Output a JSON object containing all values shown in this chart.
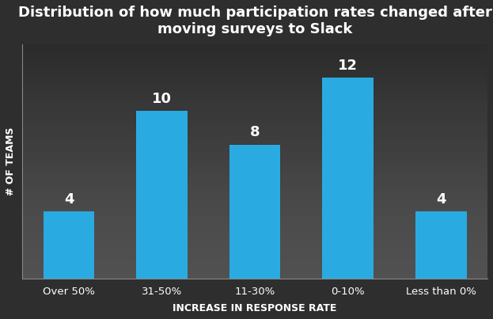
{
  "categories": [
    "Over 50%",
    "31-50%",
    "11-30%",
    "0-10%",
    "Less than 0%"
  ],
  "values": [
    4,
    10,
    8,
    12,
    4
  ],
  "bar_color": "#29ABE2",
  "background_color_top": "#2a2a2a",
  "background_color_bottom": "#3d3d3d",
  "title_line1": "Distribution of how much participation rates changed after",
  "title_line2": "moving surveys to Slack",
  "xlabel": "INCREASE IN RESPONSE RATE",
  "ylabel": "# OF TEAMS",
  "text_color": "#ffffff",
  "grid_color": "#555555",
  "ylim": [
    0,
    14
  ],
  "title_fontsize": 13,
  "label_fontsize": 9.5,
  "bar_label_fontsize": 13,
  "axis_label_fontsize": 9
}
